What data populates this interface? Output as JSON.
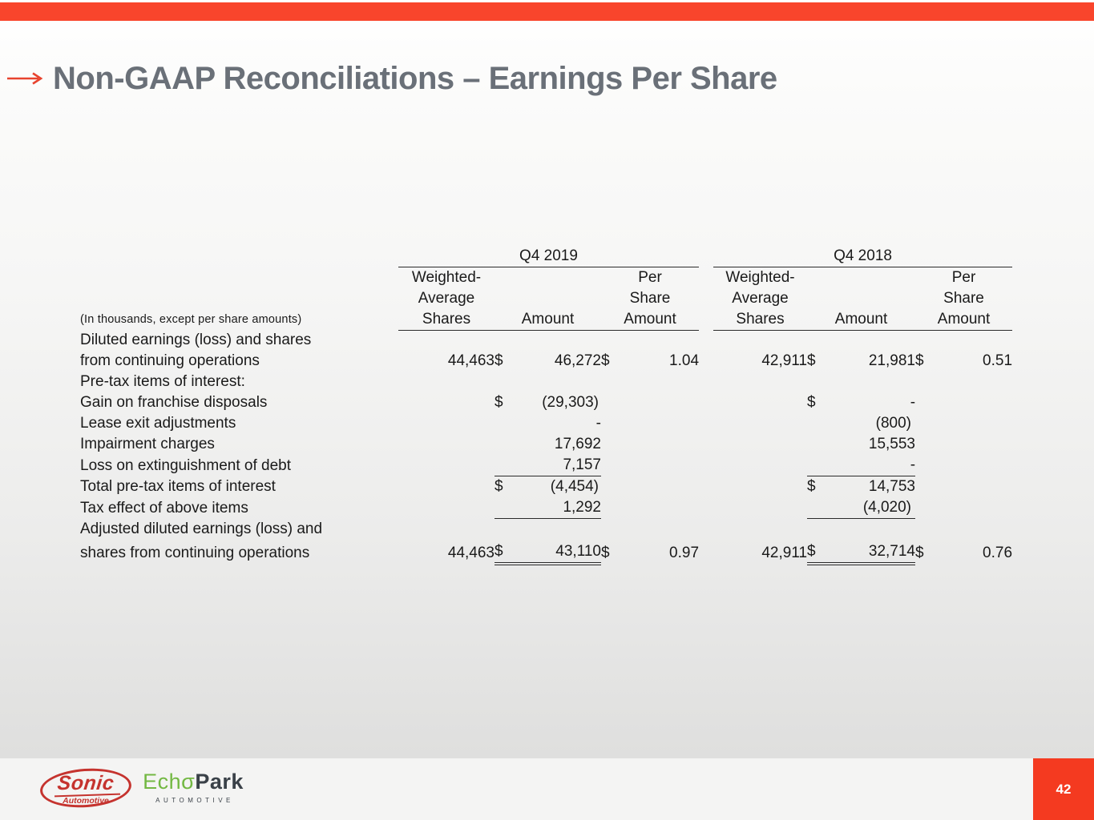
{
  "slide": {
    "title": "Non-GAAP Reconciliations – Earnings Per Share",
    "page_number": "42"
  },
  "colors": {
    "accent_red": "#f9452c",
    "pagebox_red": "#f43a20",
    "title_gray": "#6a7078",
    "sonic_red": "#c5332e",
    "echopark_green": "#73b843",
    "echopark_dark": "#3a4148"
  },
  "table": {
    "note": "(In thousands, except per share amounts)",
    "groups": [
      {
        "key": "q4_2019",
        "label": "Q4 2019"
      },
      {
        "key": "q4_2018",
        "label": "Q4 2018"
      }
    ],
    "col_headers": {
      "shares_lines": [
        "Weighted-",
        "Average",
        "Shares"
      ],
      "amount": "Amount",
      "per_share_lines": [
        "Per",
        "Share",
        "Amount"
      ]
    },
    "rows": [
      {
        "label": "Diluted earnings (loss) and shares",
        "indent": 0
      },
      {
        "label": "from continuing operations",
        "indent": 1,
        "q4_2019": {
          "shares": "44,463",
          "d1": "$",
          "amount": "46,272",
          "d2": "$",
          "ps": "1.04"
        },
        "q4_2018": {
          "shares": "42,911",
          "d1": "$",
          "amount": "21,981",
          "d2": "$",
          "ps": "0.51"
        }
      },
      {
        "label": "Pre-tax items of interest:",
        "indent": 0
      },
      {
        "label": "Gain on franchise disposals",
        "indent": 1,
        "q4_2019": {
          "d1": "$",
          "amount": "(29,303)"
        },
        "q4_2018": {
          "d1": "$",
          "amount": "-"
        }
      },
      {
        "label": "Lease exit adjustments",
        "indent": 1,
        "q4_2019": {
          "amount": "-"
        },
        "q4_2018": {
          "amount": "(800)"
        }
      },
      {
        "label": "Impairment charges",
        "indent": 1,
        "q4_2019": {
          "amount": "17,692"
        },
        "q4_2018": {
          "amount": "15,553"
        }
      },
      {
        "label": "Loss on extinguishment of debt",
        "indent": 1,
        "rule_after": "single",
        "q4_2019": {
          "amount": "7,157"
        },
        "q4_2018": {
          "amount": "-"
        }
      },
      {
        "label": "Total pre-tax items of interest",
        "indent": 2,
        "q4_2019": {
          "d1": "$",
          "amount": "(4,454)"
        },
        "q4_2018": {
          "d1": "$",
          "amount": "14,753"
        }
      },
      {
        "label": "Tax effect of above items",
        "indent": 2,
        "rule_after": "single",
        "q4_2019": {
          "amount": "1,292"
        },
        "q4_2018": {
          "amount": "(4,020)"
        }
      },
      {
        "label": "Adjusted diluted earnings (loss) and",
        "indent": 0
      },
      {
        "label": "shares from continuing operations",
        "indent": 1,
        "rule_after": "double",
        "q4_2019": {
          "shares": "44,463",
          "d1": "$",
          "amount": "43,110",
          "d2": "$",
          "ps": "0.97"
        },
        "q4_2018": {
          "shares": "42,911",
          "d1": "$",
          "amount": "32,714",
          "d2": "$",
          "ps": "0.76"
        }
      }
    ]
  },
  "footer": {
    "sonic_logo": {
      "name": "Sonic",
      "sub": "Automotive"
    },
    "echopark_logo": {
      "part1": "Ech",
      "sigma": "σ",
      "part2": "Park",
      "sub": "AUTOMOTIVE"
    }
  }
}
